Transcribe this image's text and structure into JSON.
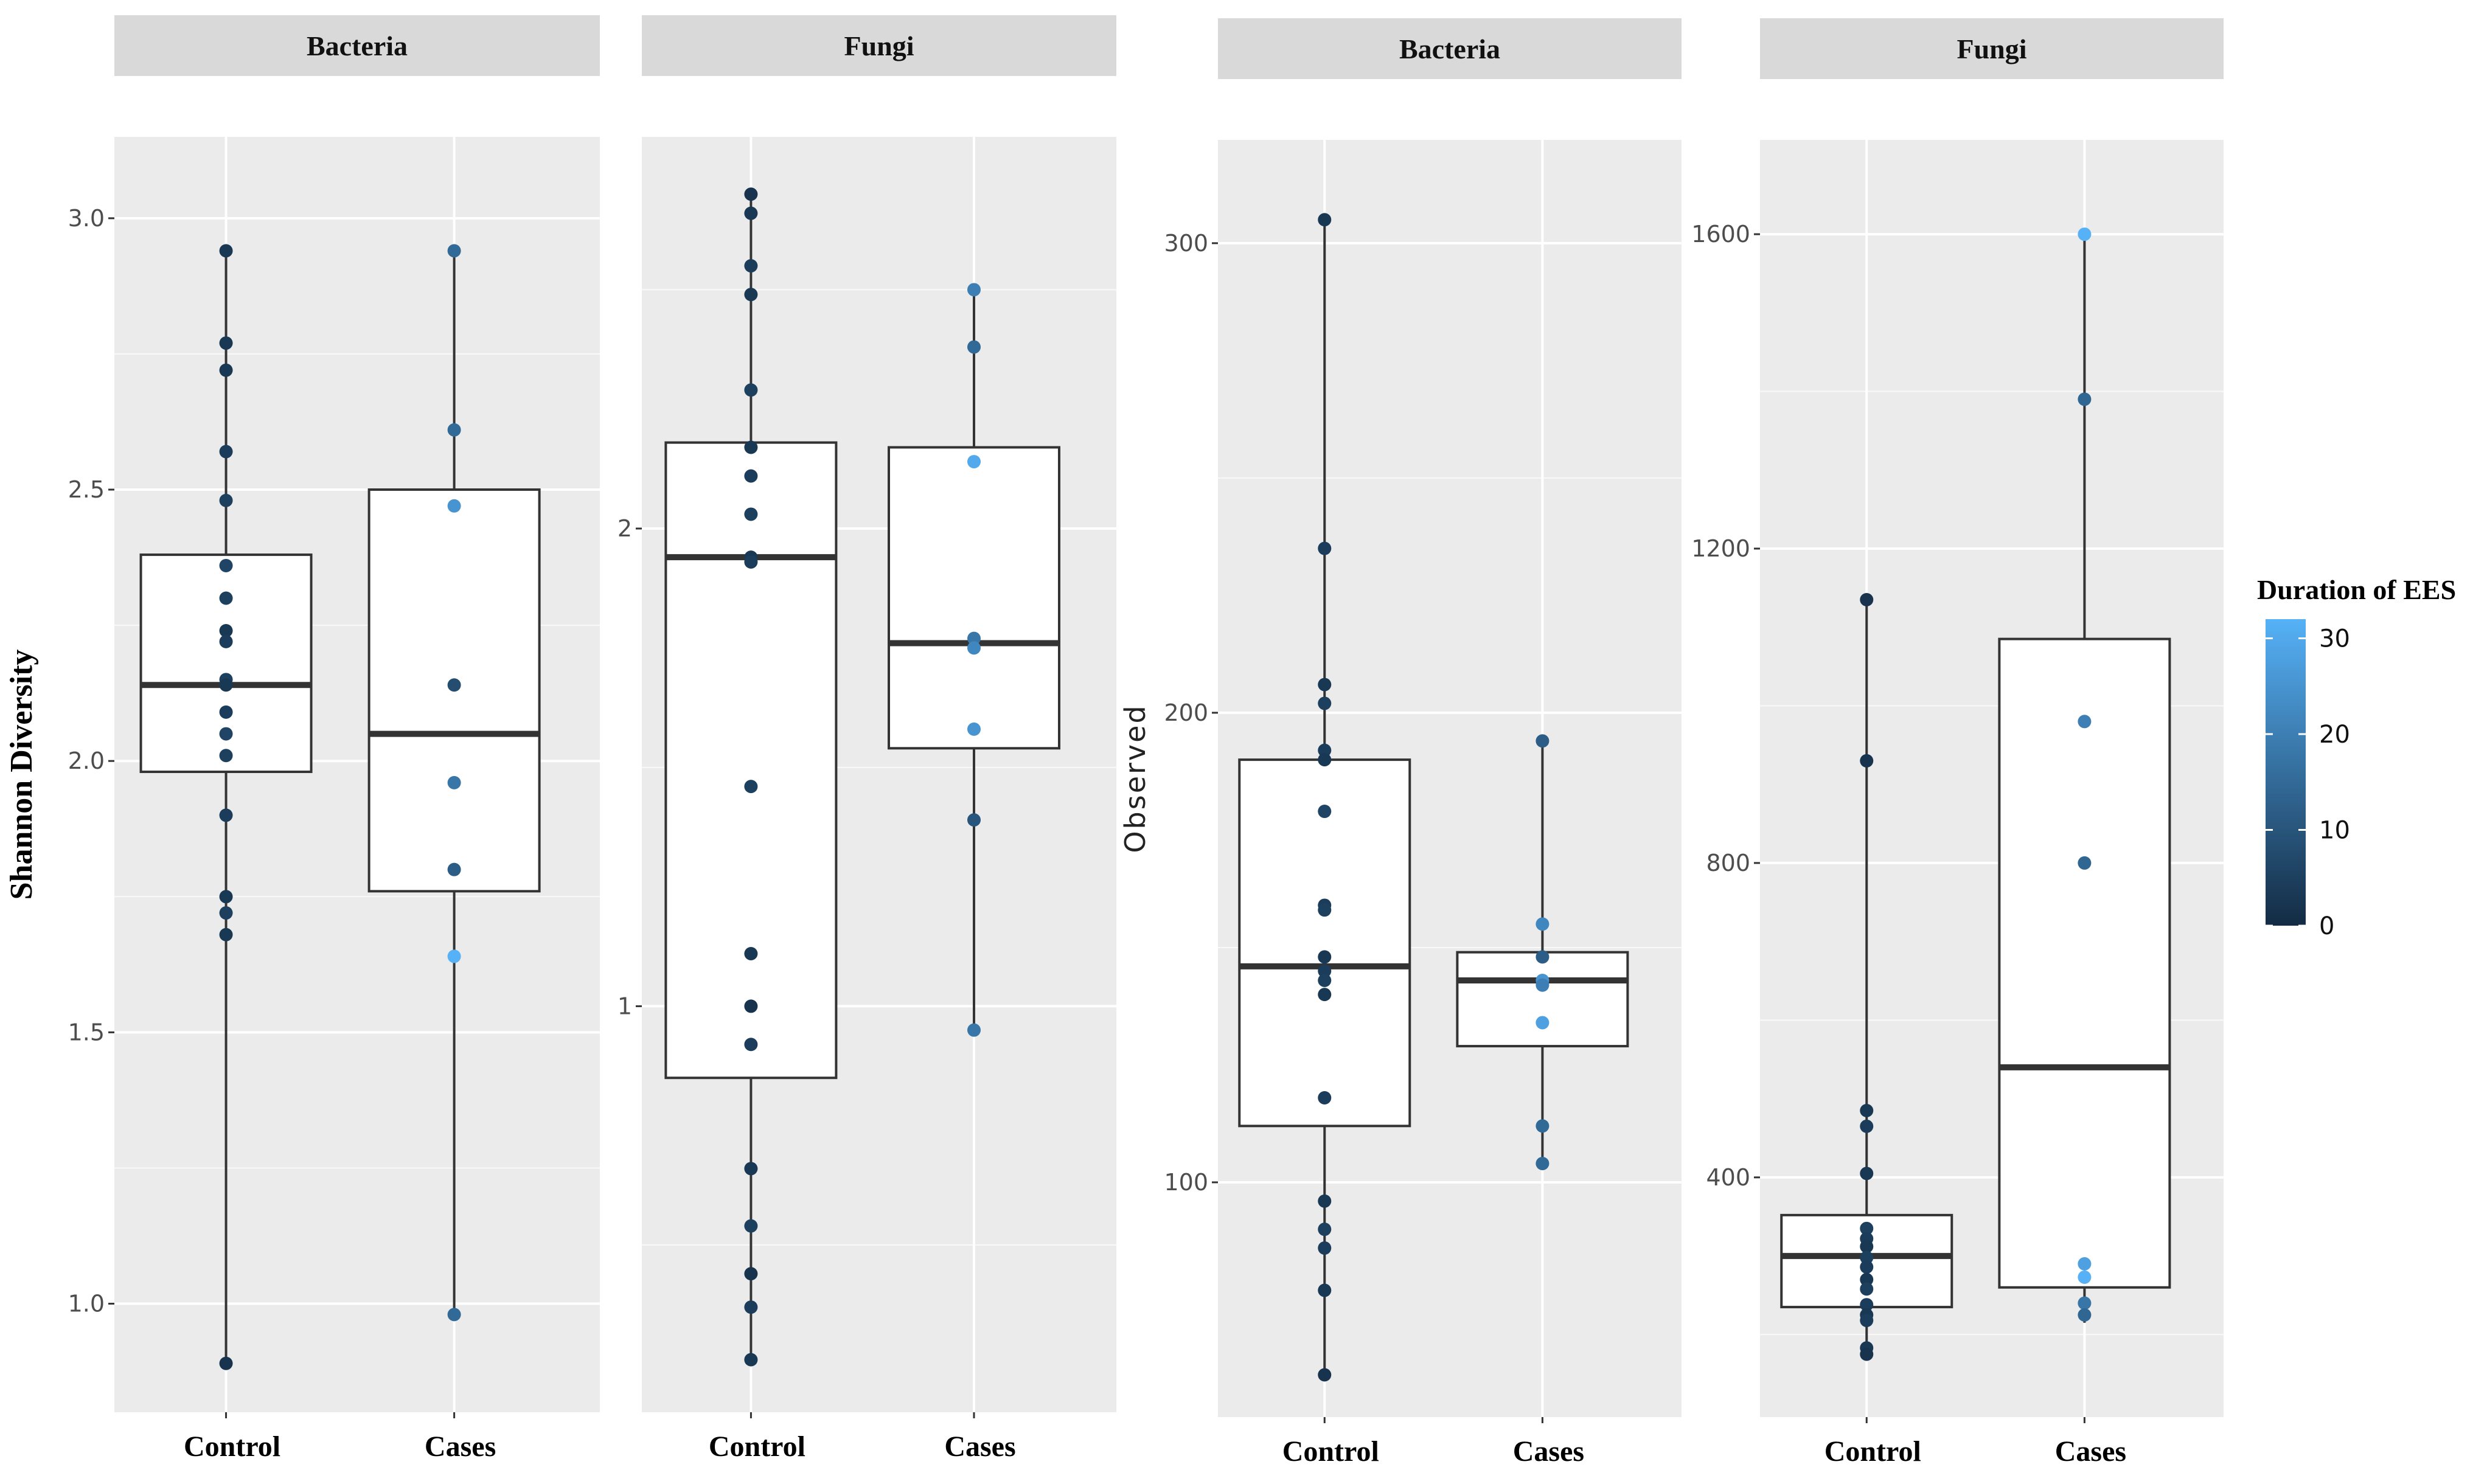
{
  "chart_data": [
    {
      "type": "box",
      "title": "Bacteria",
      "ylabel": "Shannon Diversity",
      "categories": [
        "Control",
        "Cases"
      ],
      "ylim": [
        0.8,
        3.15
      ],
      "yticks": [
        1.0,
        1.5,
        2.0,
        2.5,
        3.0
      ],
      "ytick_labels": [
        "1.0",
        "1.5",
        "2.0",
        "2.5",
        "3.0"
      ],
      "boxes": [
        {
          "category": "Control",
          "q1": 1.98,
          "median": 2.14,
          "q3": 2.38,
          "whisker_low": 0.89,
          "whisker_high": 2.94
        },
        {
          "category": "Cases",
          "q1": 1.76,
          "median": 2.05,
          "q3": 2.5,
          "whisker_low": 0.98,
          "whisker_high": 2.94
        }
      ],
      "points": [
        {
          "category": "Control",
          "values": [
            2.94,
            2.77,
            2.72,
            2.57,
            2.48,
            2.36,
            2.3,
            2.24,
            2.22,
            2.15,
            2.14,
            2.09,
            2.05,
            2.01,
            1.9,
            1.75,
            1.72,
            1.68,
            0.89
          ],
          "durations": [
            3,
            3,
            3,
            4,
            5,
            6,
            5,
            3,
            4,
            5,
            3,
            4,
            6,
            5,
            4,
            3,
            5,
            3,
            2
          ]
        },
        {
          "category": "Cases",
          "values": [
            2.94,
            2.61,
            2.47,
            2.14,
            1.96,
            1.8,
            1.64,
            0.98
          ],
          "durations": [
            15,
            15,
            25,
            8,
            18,
            12,
            32,
            15
          ]
        }
      ]
    },
    {
      "type": "box",
      "title": "Fungi",
      "ylabel": "",
      "categories": [
        "Control",
        "Cases"
      ],
      "ylim": [
        0.15,
        2.82
      ],
      "yticks": [
        1,
        2
      ],
      "ytick_labels": [
        "1",
        "2"
      ],
      "boxes": [
        {
          "category": "Control",
          "q1": 0.85,
          "median": 1.94,
          "q3": 2.18,
          "whisker_low": 0.26,
          "whisker_high": 2.7
        },
        {
          "category": "Cases",
          "q1": 1.54,
          "median": 1.76,
          "q3": 2.17,
          "whisker_low": 0.95,
          "whisker_high": 2.5
        }
      ],
      "points": [
        {
          "category": "Control",
          "values": [
            2.7,
            2.66,
            2.55,
            2.49,
            2.29,
            2.17,
            2.11,
            2.03,
            1.94,
            1.93,
            1.46,
            1.11,
            1.0,
            0.92,
            0.66,
            0.54,
            0.44,
            0.37,
            0.26
          ],
          "durations": [
            2,
            3,
            4,
            3,
            5,
            3,
            4,
            5,
            3,
            4,
            5,
            3,
            2,
            4,
            3,
            5,
            2,
            4,
            3
          ]
        },
        {
          "category": "Cases",
          "values": [
            2.5,
            2.38,
            2.14,
            1.77,
            1.75,
            1.58,
            1.39,
            0.95
          ],
          "durations": [
            20,
            15,
            30,
            18,
            22,
            25,
            10,
            18
          ]
        }
      ]
    },
    {
      "type": "box",
      "title": "Bacteria",
      "ylabel": "Observed",
      "categories": [
        "Control",
        "Cases"
      ],
      "ylim": [
        50,
        322
      ],
      "yticks": [
        100,
        200,
        300
      ],
      "ytick_labels": [
        "100",
        "200",
        "300"
      ],
      "boxes": [
        {
          "category": "Control",
          "q1": 112,
          "median": 146,
          "q3": 190,
          "whisker_low": 59,
          "whisker_high": 305
        },
        {
          "category": "Cases",
          "q1": 129,
          "median": 143,
          "q3": 149,
          "whisker_low": 104,
          "whisker_high": 194
        }
      ],
      "points": [
        {
          "category": "Control",
          "values": [
            305,
            235,
            206,
            202,
            192,
            190,
            179,
            159,
            158,
            148,
            145,
            143,
            140,
            118,
            96,
            90,
            86,
            77,
            59
          ],
          "durations": [
            3,
            4,
            3,
            5,
            4,
            3,
            6,
            4,
            5,
            3,
            4,
            5,
            3,
            4,
            3,
            5,
            4,
            3,
            2
          ]
        },
        {
          "category": "Cases",
          "values": [
            194,
            155,
            148,
            143,
            142,
            134,
            112,
            104
          ],
          "durations": [
            12,
            22,
            12,
            25,
            20,
            28,
            15,
            15
          ]
        }
      ]
    },
    {
      "type": "box",
      "title": "Fungi",
      "ylabel": "",
      "categories": [
        "Control",
        "Cases"
      ],
      "ylim": [
        95,
        1720
      ],
      "yticks": [
        400,
        800,
        1200,
        1600
      ],
      "ytick_labels": [
        "400",
        "800",
        "1200",
        "1600"
      ],
      "boxes": [
        {
          "category": "Control",
          "q1": 235,
          "median": 300,
          "q3": 352,
          "whisker_low": 175,
          "whisker_high": 1135
        },
        {
          "category": "Cases",
          "q1": 260,
          "median": 540,
          "q3": 1085,
          "whisker_low": 215,
          "whisker_high": 1600
        }
      ],
      "points": [
        {
          "category": "Control",
          "values": [
            1135,
            930,
            485,
            465,
            405,
            335,
            322,
            312,
            298,
            286,
            270,
            258,
            238,
            225,
            218,
            183,
            175
          ],
          "durations": [
            2,
            2,
            3,
            4,
            3,
            5,
            4,
            3,
            5,
            4,
            3,
            5,
            4,
            3,
            4,
            3,
            2
          ]
        },
        {
          "category": "Cases",
          "values": [
            1600,
            1390,
            980,
            800,
            290,
            273,
            240,
            225
          ],
          "durations": [
            32,
            14,
            20,
            14,
            28,
            32,
            18,
            14
          ]
        }
      ]
    }
  ],
  "legend": {
    "title": "Duration of EES",
    "ticks": [
      0,
      10,
      20,
      30
    ],
    "tick_labels": [
      "0",
      "10",
      "20",
      "30"
    ],
    "range": [
      0,
      32
    ],
    "low_color": "#132B43",
    "high_color": "#56B1F7"
  },
  "colors": {
    "panel_bg": "#EBEBEB",
    "strip_bg": "#D9D9D9",
    "grid": "#FFFFFF",
    "box_line": "#333333"
  }
}
